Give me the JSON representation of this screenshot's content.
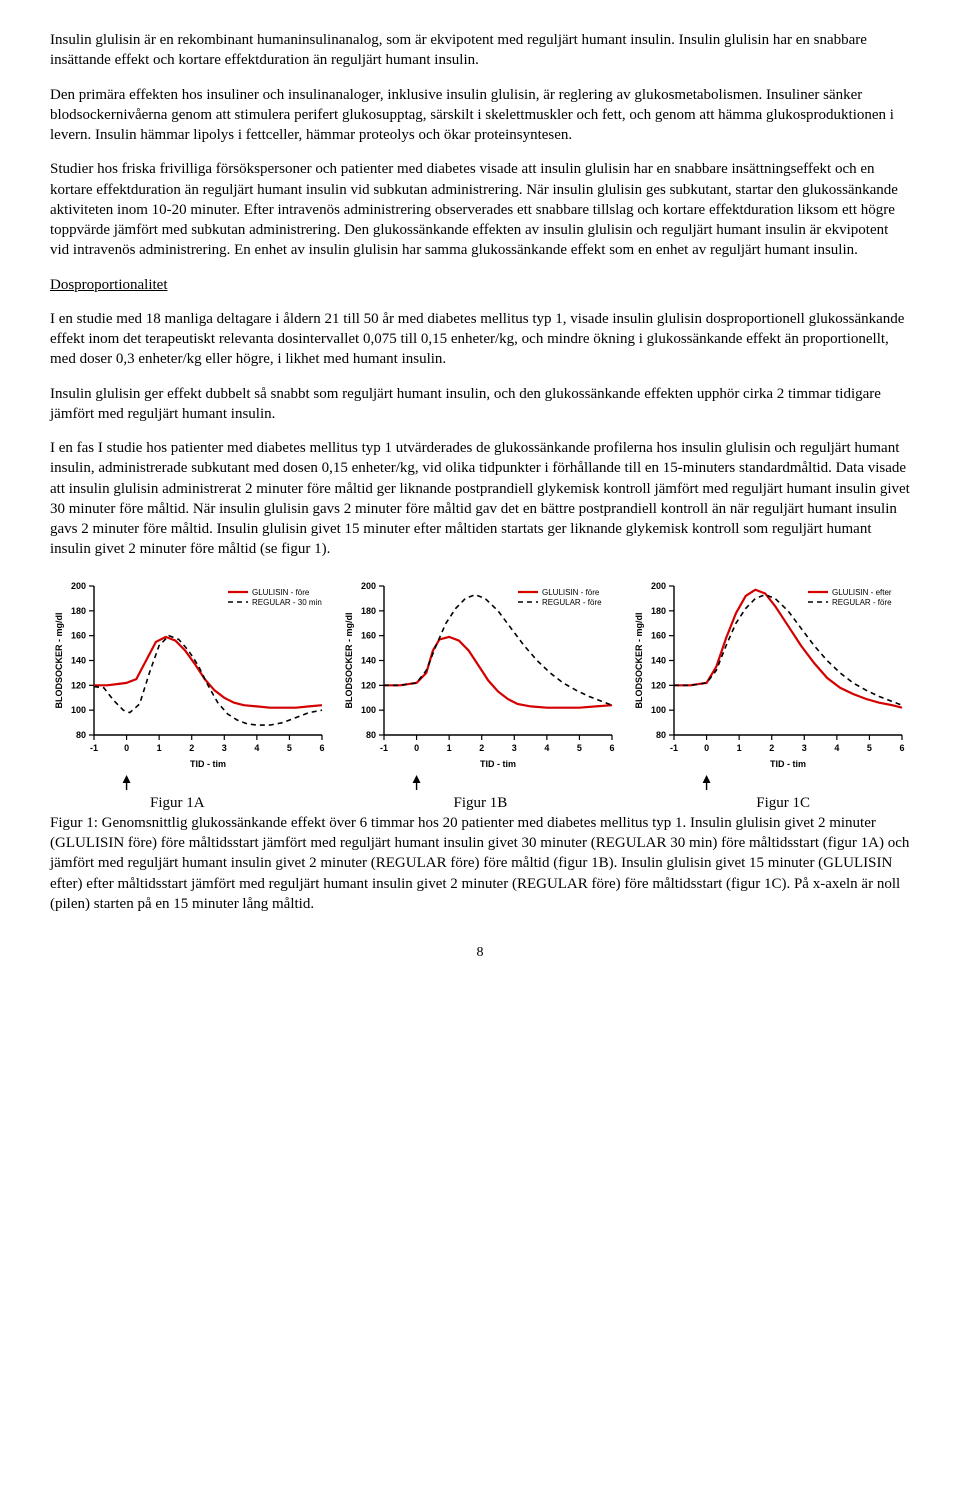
{
  "paragraphs": {
    "p1": "Insulin glulisin är en rekombinant humaninsulinanalog, som är ekvipotent med reguljärt humant insulin. Insulin glulisin har en snabbare insättande effekt och kortare effektduration än reguljärt humant insulin.",
    "p2": "Den primära effekten hos insuliner och insulinanaloger, inklusive insulin glulisin, är reglering av glukosmetabolismen. Insuliner sänker blodsockernivåerna genom att stimulera perifert glukosupptag, särskilt i skelettmuskler och fett, och genom att hämma glukosproduktionen i levern. Insulin hämmar lipolys i fettceller, hämmar proteolys och ökar proteinsyntesen.",
    "p3": "Studier hos friska frivilliga försökspersoner och patienter med diabetes visade att insulin glulisin har en snabbare insättningseffekt och en kortare effektduration än reguljärt humant insulin vid subkutan administrering. När insulin glulisin ges subkutant, startar den glukossänkande aktiviteten inom 10-20 minuter. Efter intravenös administrering observerades ett snabbare tillslag och kortare effektduration liksom ett högre toppvärde jämfört med subkutan administrering. Den glukossänkande effekten av insulin glulisin och reguljärt humant insulin är ekvipotent vid intravenös administrering. En enhet av insulin glulisin har samma glukossänkande effekt som en enhet av reguljärt humant insulin.",
    "h_dos": "Dosproportionalitet",
    "p4": "I en studie med 18 manliga deltagare i åldern 21 till 50 år med diabetes mellitus typ 1, visade insulin glulisin dosproportionell glukossänkande effekt inom det terapeutiskt relevanta dosintervallet 0,075 till 0,15 enheter/kg, och mindre ökning i glukossänkande effekt än proportionellt, med doser 0,3 enheter/kg eller högre, i likhet med humant insulin.",
    "p5": "Insulin glulisin ger effekt dubbelt så snabbt som reguljärt humant insulin, och den glukossänkande effekten upphör cirka 2 timmar tidigare jämfört med reguljärt humant insulin.",
    "p6": "I en fas I studie hos patienter med diabetes mellitus typ 1 utvärderades de glukossänkande profilerna hos insulin glulisin och reguljärt humant insulin, administrerade subkutant med dosen 0,15 enheter/kg, vid olika tidpunkter i förhållande till en 15-minuters standardmåltid. Data visade att insulin glulisin administrerat 2 minuter före måltid ger liknande postprandiell glykemisk kontroll jämfört med reguljärt humant insulin givet 30 minuter före måltid. När insulin glulisin gavs 2 minuter före måltid gav det en bättre postprandiell kontroll än när reguljärt humant insulin gavs 2 minuter före måltid. Insulin glulisin givet 15 minuter efter måltiden startats ger liknande glykemisk kontroll som reguljärt humant insulin givet 2 minuter före måltid (se figur 1).",
    "caption": "Figur 1: Genomsnittlig glukossänkande effekt över 6 timmar hos 20 patienter med diabetes mellitus typ 1. Insulin glulisin givet 2 minuter (GLULISIN före) före måltidsstart jämfört med reguljärt humant insulin givet 30 minuter (REGULAR 30 min) före måltidsstart (figur 1A) och jämfört med reguljärt humant insulin givet 2 minuter (REGULAR före) före måltid (figur 1B). Insulin glulisin givet 15 minuter (GLULISIN efter) efter måltidsstart jämfört med reguljärt humant insulin givet 2 minuter (REGULAR före) före måltidsstart (figur 1C). På x-axeln är noll (pilen) starten på en 15 minuter lång måltid."
  },
  "figLabels": {
    "a": "Figur 1A",
    "b": "Figur 1B",
    "c": "Figur 1C"
  },
  "pageNumber": "8",
  "chartCommon": {
    "ylabel": "BLODSOCKER - mg/dl",
    "xlabel": "TID - tim",
    "ylim": [
      80,
      200
    ],
    "yticks": [
      80,
      100,
      120,
      140,
      160,
      180,
      200
    ],
    "xlim": [
      -1,
      6
    ],
    "xticks": [
      -1,
      0,
      1,
      2,
      3,
      4,
      5,
      6
    ],
    "arrow_at_x": 0,
    "bg_color": "#ffffff",
    "axis_color": "#000000",
    "tick_fontsize": 9,
    "label_fontsize": 9
  },
  "charts": [
    {
      "id": "A",
      "legend": [
        {
          "label": "GLULISIN - före",
          "color": "#d40000",
          "dash": null,
          "width": 2.2
        },
        {
          "label": "REGULAR - 30 min",
          "color": "#000000",
          "dash": "5,4",
          "width": 1.6
        }
      ],
      "series": [
        {
          "color": "#d40000",
          "dash": null,
          "width": 2.2,
          "points": [
            [
              -1,
              120
            ],
            [
              -0.6,
              120
            ],
            [
              -0.3,
              121
            ],
            [
              0,
              122
            ],
            [
              0.3,
              125
            ],
            [
              0.6,
              140
            ],
            [
              0.9,
              155
            ],
            [
              1.2,
              159
            ],
            [
              1.5,
              156
            ],
            [
              1.8,
              148
            ],
            [
              2.1,
              137
            ],
            [
              2.4,
              125
            ],
            [
              2.7,
              116
            ],
            [
              3,
              110
            ],
            [
              3.3,
              106
            ],
            [
              3.6,
              104
            ],
            [
              4,
              103
            ],
            [
              4.4,
              102
            ],
            [
              4.8,
              102
            ],
            [
              5.2,
              102
            ],
            [
              5.6,
              103
            ],
            [
              6,
              104
            ]
          ]
        },
        {
          "color": "#000000",
          "dash": "5,4",
          "width": 1.6,
          "points": [
            [
              -1,
              119
            ],
            [
              -0.7,
              118
            ],
            [
              -0.4,
              108
            ],
            [
              -0.1,
              100
            ],
            [
              0.1,
              98
            ],
            [
              0.4,
              105
            ],
            [
              0.7,
              130
            ],
            [
              1,
              152
            ],
            [
              1.3,
              160
            ],
            [
              1.6,
              157
            ],
            [
              1.9,
              148
            ],
            [
              2.2,
              136
            ],
            [
              2.5,
              120
            ],
            [
              2.8,
              106
            ],
            [
              3.1,
              97
            ],
            [
              3.4,
              92
            ],
            [
              3.7,
              89
            ],
            [
              4,
              88
            ],
            [
              4.4,
              88
            ],
            [
              4.8,
              90
            ],
            [
              5.2,
              94
            ],
            [
              5.6,
              98
            ],
            [
              6,
              100
            ]
          ]
        }
      ]
    },
    {
      "id": "B",
      "legend": [
        {
          "label": "GLULISIN - före",
          "color": "#d40000",
          "dash": null,
          "width": 2.2
        },
        {
          "label": "REGULAR - före",
          "color": "#000000",
          "dash": "5,4",
          "width": 1.6
        }
      ],
      "series": [
        {
          "color": "#d40000",
          "dash": null,
          "width": 2.2,
          "points": [
            [
              -1,
              120
            ],
            [
              -0.5,
              120
            ],
            [
              0,
              122
            ],
            [
              0.3,
              130
            ],
            [
              0.5,
              148
            ],
            [
              0.7,
              157
            ],
            [
              1,
              159
            ],
            [
              1.3,
              156
            ],
            [
              1.6,
              148
            ],
            [
              1.9,
              136
            ],
            [
              2.2,
              124
            ],
            [
              2.5,
              115
            ],
            [
              2.8,
              109
            ],
            [
              3.1,
              105
            ],
            [
              3.5,
              103
            ],
            [
              4,
              102
            ],
            [
              4.5,
              102
            ],
            [
              5,
              102
            ],
            [
              5.5,
              103
            ],
            [
              6,
              104
            ]
          ]
        },
        {
          "color": "#000000",
          "dash": "5,4",
          "width": 1.6,
          "points": [
            [
              -1,
              120
            ],
            [
              -0.5,
              120
            ],
            [
              0,
              122
            ],
            [
              0.3,
              132
            ],
            [
              0.6,
              152
            ],
            [
              0.9,
              170
            ],
            [
              1.2,
              182
            ],
            [
              1.5,
              190
            ],
            [
              1.8,
              193
            ],
            [
              2.1,
              190
            ],
            [
              2.5,
              180
            ],
            [
              2.9,
              166
            ],
            [
              3.3,
              152
            ],
            [
              3.7,
              140
            ],
            [
              4.1,
              130
            ],
            [
              4.5,
              122
            ],
            [
              4.9,
              116
            ],
            [
              5.3,
              111
            ],
            [
              5.7,
              107
            ],
            [
              6,
              104
            ]
          ]
        }
      ]
    },
    {
      "id": "C",
      "legend": [
        {
          "label": "GLULISIN - efter",
          "color": "#d40000",
          "dash": null,
          "width": 2.2
        },
        {
          "label": "REGULAR - före",
          "color": "#000000",
          "dash": "5,4",
          "width": 1.6
        }
      ],
      "series": [
        {
          "color": "#d40000",
          "dash": null,
          "width": 2.2,
          "points": [
            [
              -1,
              120
            ],
            [
              -0.5,
              120
            ],
            [
              0,
              122
            ],
            [
              0.3,
              135
            ],
            [
              0.6,
              158
            ],
            [
              0.9,
              178
            ],
            [
              1.2,
              192
            ],
            [
              1.5,
              197
            ],
            [
              1.8,
              194
            ],
            [
              2.1,
              184
            ],
            [
              2.5,
              168
            ],
            [
              2.9,
              152
            ],
            [
              3.3,
              138
            ],
            [
              3.7,
              126
            ],
            [
              4.1,
              118
            ],
            [
              4.5,
              113
            ],
            [
              4.9,
              109
            ],
            [
              5.3,
              106
            ],
            [
              5.7,
              104
            ],
            [
              6,
              102
            ]
          ]
        },
        {
          "color": "#000000",
          "dash": "5,4",
          "width": 1.6,
          "points": [
            [
              -1,
              120
            ],
            [
              -0.5,
              120
            ],
            [
              0,
              122
            ],
            [
              0.3,
              132
            ],
            [
              0.6,
              152
            ],
            [
              0.9,
              170
            ],
            [
              1.2,
              182
            ],
            [
              1.5,
              190
            ],
            [
              1.8,
              193
            ],
            [
              2.1,
              190
            ],
            [
              2.5,
              180
            ],
            [
              2.9,
              166
            ],
            [
              3.3,
              152
            ],
            [
              3.7,
              140
            ],
            [
              4.1,
              130
            ],
            [
              4.5,
              122
            ],
            [
              4.9,
              116
            ],
            [
              5.3,
              111
            ],
            [
              5.7,
              107
            ],
            [
              6,
              104
            ]
          ]
        }
      ]
    }
  ]
}
